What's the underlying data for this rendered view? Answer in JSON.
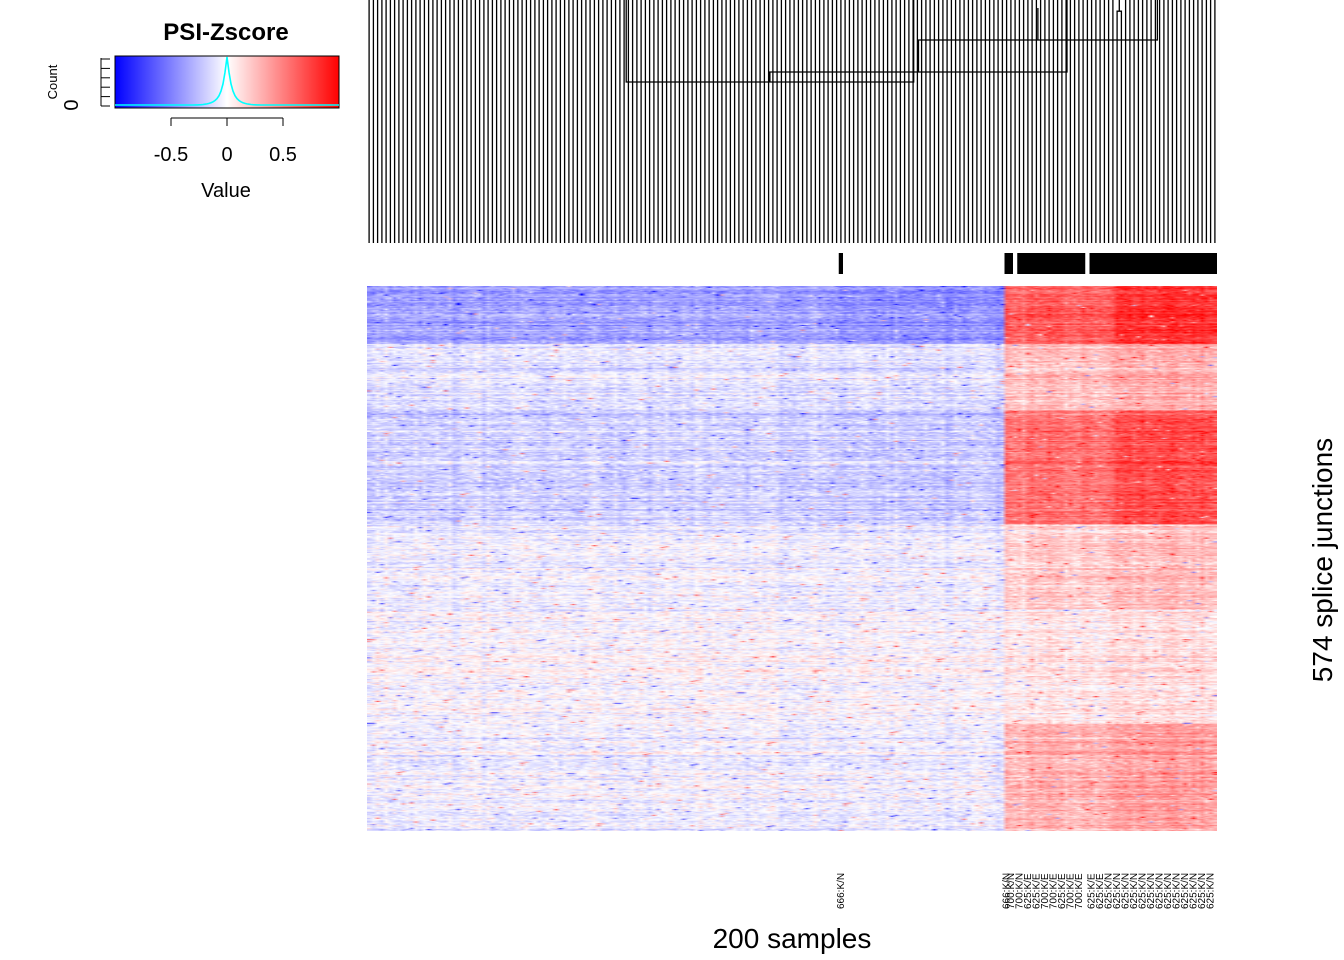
{
  "chart_data": {
    "type": "heatmap",
    "legend": {
      "title": "PSI-Zscore",
      "ylabel": "Count",
      "ytick": "0",
      "xlabel": "Value",
      "xticks": [
        "-0.5",
        "0",
        "0.5"
      ],
      "xtick_values": [
        -0.5,
        0,
        0.5
      ],
      "value_range": [
        -1,
        1
      ],
      "low_color": "#0000ff",
      "mid_color": "#ffffff",
      "high_color": "#ff0000",
      "histogram_color": "#00ffff"
    },
    "xlabel": "200 samples",
    "ylabel": "574 splice junctions",
    "n_samples": 200,
    "n_junctions": 574,
    "dendrogram": "columns",
    "annotation_bar": {
      "color": "#000000",
      "marked_segments": [
        [
          111,
          111
        ],
        [
          150,
          151
        ],
        [
          153,
          168
        ],
        [
          170,
          199
        ]
      ]
    },
    "column_labels": [
      {
        "col": 111,
        "text": "666:K/N"
      },
      {
        "col": 150,
        "text": "666:K/N"
      },
      {
        "col": 151,
        "text": "700:K/N"
      },
      {
        "col": 153,
        "text": "700:K/N"
      },
      {
        "col": 155,
        "text": "625:K/E"
      },
      {
        "col": 157,
        "text": "625:K/E"
      },
      {
        "col": 159,
        "text": "700:K/E"
      },
      {
        "col": 161,
        "text": "700:K/E"
      },
      {
        "col": 163,
        "text": "625:K/E"
      },
      {
        "col": 165,
        "text": "700:K/E"
      },
      {
        "col": 167,
        "text": "700:K/E"
      },
      {
        "col": 170,
        "text": "625:K/E"
      },
      {
        "col": 172,
        "text": "625:K/E"
      },
      {
        "col": 174,
        "text": "625:K/N"
      },
      {
        "col": 176,
        "text": "625:K/N"
      },
      {
        "col": 178,
        "text": "625:K/N"
      },
      {
        "col": 180,
        "text": "625:K/N"
      },
      {
        "col": 182,
        "text": "625:K/N"
      },
      {
        "col": 184,
        "text": "625:K/N"
      },
      {
        "col": 186,
        "text": "625:K/N"
      },
      {
        "col": 188,
        "text": "625:K/N"
      },
      {
        "col": 190,
        "text": "625:K/N"
      },
      {
        "col": 192,
        "text": "625:K/N"
      },
      {
        "col": 194,
        "text": "625:K/N"
      },
      {
        "col": 196,
        "text": "625:K/N"
      },
      {
        "col": 198,
        "text": "625:K/N"
      }
    ],
    "column_groups": [
      {
        "from": 0,
        "to": 111,
        "mean_z": -0.12
      },
      {
        "from": 112,
        "to": 149,
        "mean_z": -0.22
      },
      {
        "from": 150,
        "to": 175,
        "mean_z": 0.28
      },
      {
        "from": 176,
        "to": 199,
        "mean_z": 0.48
      }
    ],
    "row_blocks": [
      {
        "from": 0,
        "to": 60,
        "low_groups_z": -0.35,
        "high_groups_z": 0.65
      },
      {
        "from": 61,
        "to": 130,
        "low_groups_z": -0.1,
        "high_groups_z": 0.25
      },
      {
        "from": 131,
        "to": 250,
        "low_groups_z": -0.18,
        "high_groups_z": 0.55
      },
      {
        "from": 251,
        "to": 340,
        "low_groups_z": -0.05,
        "high_groups_z": 0.2
      },
      {
        "from": 341,
        "to": 460,
        "low_groups_z": 0.0,
        "high_groups_z": 0.1
      },
      {
        "from": 461,
        "to": 573,
        "low_groups_z": -0.05,
        "high_groups_z": 0.3
      }
    ]
  }
}
